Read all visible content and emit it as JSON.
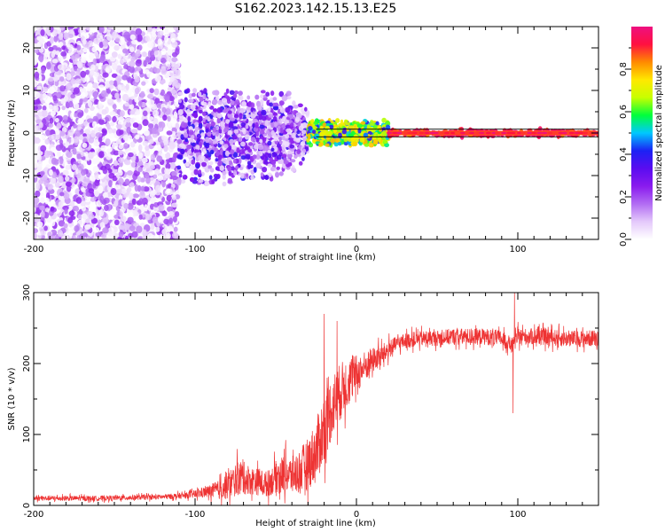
{
  "title": "S162.2023.142.15.13.E25",
  "colors": {
    "snr_line": "#ee3333",
    "colormap": [
      "#ffffff",
      "#e4c9fb",
      "#b26cf3",
      "#8a1bee",
      "#5a0cf0",
      "#1c22f4",
      "#00c8ff",
      "#00ff3c",
      "#c8ff00",
      "#ffe800",
      "#ff8a00",
      "#ff1040",
      "#ee1080"
    ]
  },
  "chart_data": [
    {
      "id": "spectrogram",
      "type": "heatmap",
      "xlabel": "Height of straight line (km)",
      "ylabel": "Frequency (Hz)",
      "xlim": [
        -200,
        150
      ],
      "ylim": [
        -25,
        25
      ],
      "xticks": [
        -200,
        -100,
        0,
        100
      ],
      "xtick_labels": [
        "-200",
        "-100",
        "0",
        "100"
      ],
      "yticks": [
        -20,
        -10,
        0,
        10,
        20
      ],
      "ytick_labels": [
        "-20",
        "-10",
        "0",
        "10",
        "20"
      ],
      "colorbar": {
        "label": "Normalized spectral amplitude",
        "range": [
          0,
          1
        ],
        "ticks": [
          0.0,
          0.2,
          0.4,
          0.6,
          0.8
        ],
        "tick_labels": [
          "0.0",
          "0.2",
          "0.4",
          "0.6",
          "0.8"
        ]
      },
      "regions": [
        {
          "x_range": [
            -200,
            -110
          ],
          "freq_range": [
            -25,
            25
          ],
          "amplitude_range": [
            0.0,
            0.25
          ],
          "pattern": "diffuse noise"
        },
        {
          "x_range": [
            -110,
            -30
          ],
          "freq_range": [
            -12,
            10
          ],
          "amplitude_range": [
            0.05,
            0.4
          ],
          "pattern": "concentrating toward 0 Hz"
        },
        {
          "x_range": [
            -30,
            20
          ],
          "freq_range": [
            -3,
            3
          ],
          "amplitude_range": [
            0.3,
            0.8
          ],
          "pattern": "narrow band"
        },
        {
          "x_range": [
            20,
            150
          ],
          "freq_range": [
            -1,
            1
          ],
          "amplitude_range": [
            0.8,
            1.0
          ],
          "pattern": "tone at 0 Hz"
        }
      ]
    },
    {
      "id": "snr",
      "type": "line",
      "xlabel": "Height of straight line (km)",
      "ylabel": "SNR (10 * v/v)",
      "xlim": [
        -200,
        150
      ],
      "ylim": [
        0,
        300
      ],
      "xticks": [
        -200,
        -100,
        0,
        100
      ],
      "xtick_labels": [
        "-200",
        "-100",
        "0",
        "100"
      ],
      "yticks": [
        0,
        100,
        200,
        300
      ],
      "ytick_labels": [
        "0",
        "100",
        "200",
        "300"
      ],
      "series": [
        {
          "name": "SNR",
          "x": [
            -200,
            -180,
            -160,
            -140,
            -120,
            -105,
            -95,
            -85,
            -80,
            -72,
            -65,
            -55,
            -50,
            -45,
            -40,
            -35,
            -30,
            -25,
            -20,
            -15,
            -10,
            -5,
            0,
            5,
            10,
            15,
            20,
            25,
            30,
            40,
            50,
            60,
            70,
            80,
            90,
            97,
            100,
            110,
            120,
            130,
            140,
            150
          ],
          "y": [
            10,
            10,
            10,
            11,
            12,
            14,
            18,
            22,
            28,
            40,
            35,
            30,
            40,
            45,
            42,
            48,
            60,
            75,
            110,
            140,
            160,
            175,
            185,
            195,
            205,
            210,
            220,
            228,
            232,
            235,
            236,
            238,
            238,
            238,
            235,
            225,
            238,
            238,
            237,
            235,
            235,
            236
          ],
          "noise": [
            4,
            4,
            4,
            4,
            4,
            5,
            8,
            15,
            22,
            28,
            22,
            20,
            25,
            30,
            30,
            35,
            40,
            50,
            55,
            50,
            45,
            40,
            30,
            25,
            20,
            18,
            15,
            12,
            12,
            12,
            12,
            13,
            13,
            13,
            13,
            12,
            13,
            13,
            13,
            13,
            13,
            13
          ]
        }
      ],
      "spikes": [
        {
          "x": -20,
          "y": 270
        },
        {
          "x": -12,
          "y": 260
        },
        {
          "x": 98,
          "y": 300
        },
        {
          "x": 97,
          "y": 130
        }
      ]
    }
  ]
}
